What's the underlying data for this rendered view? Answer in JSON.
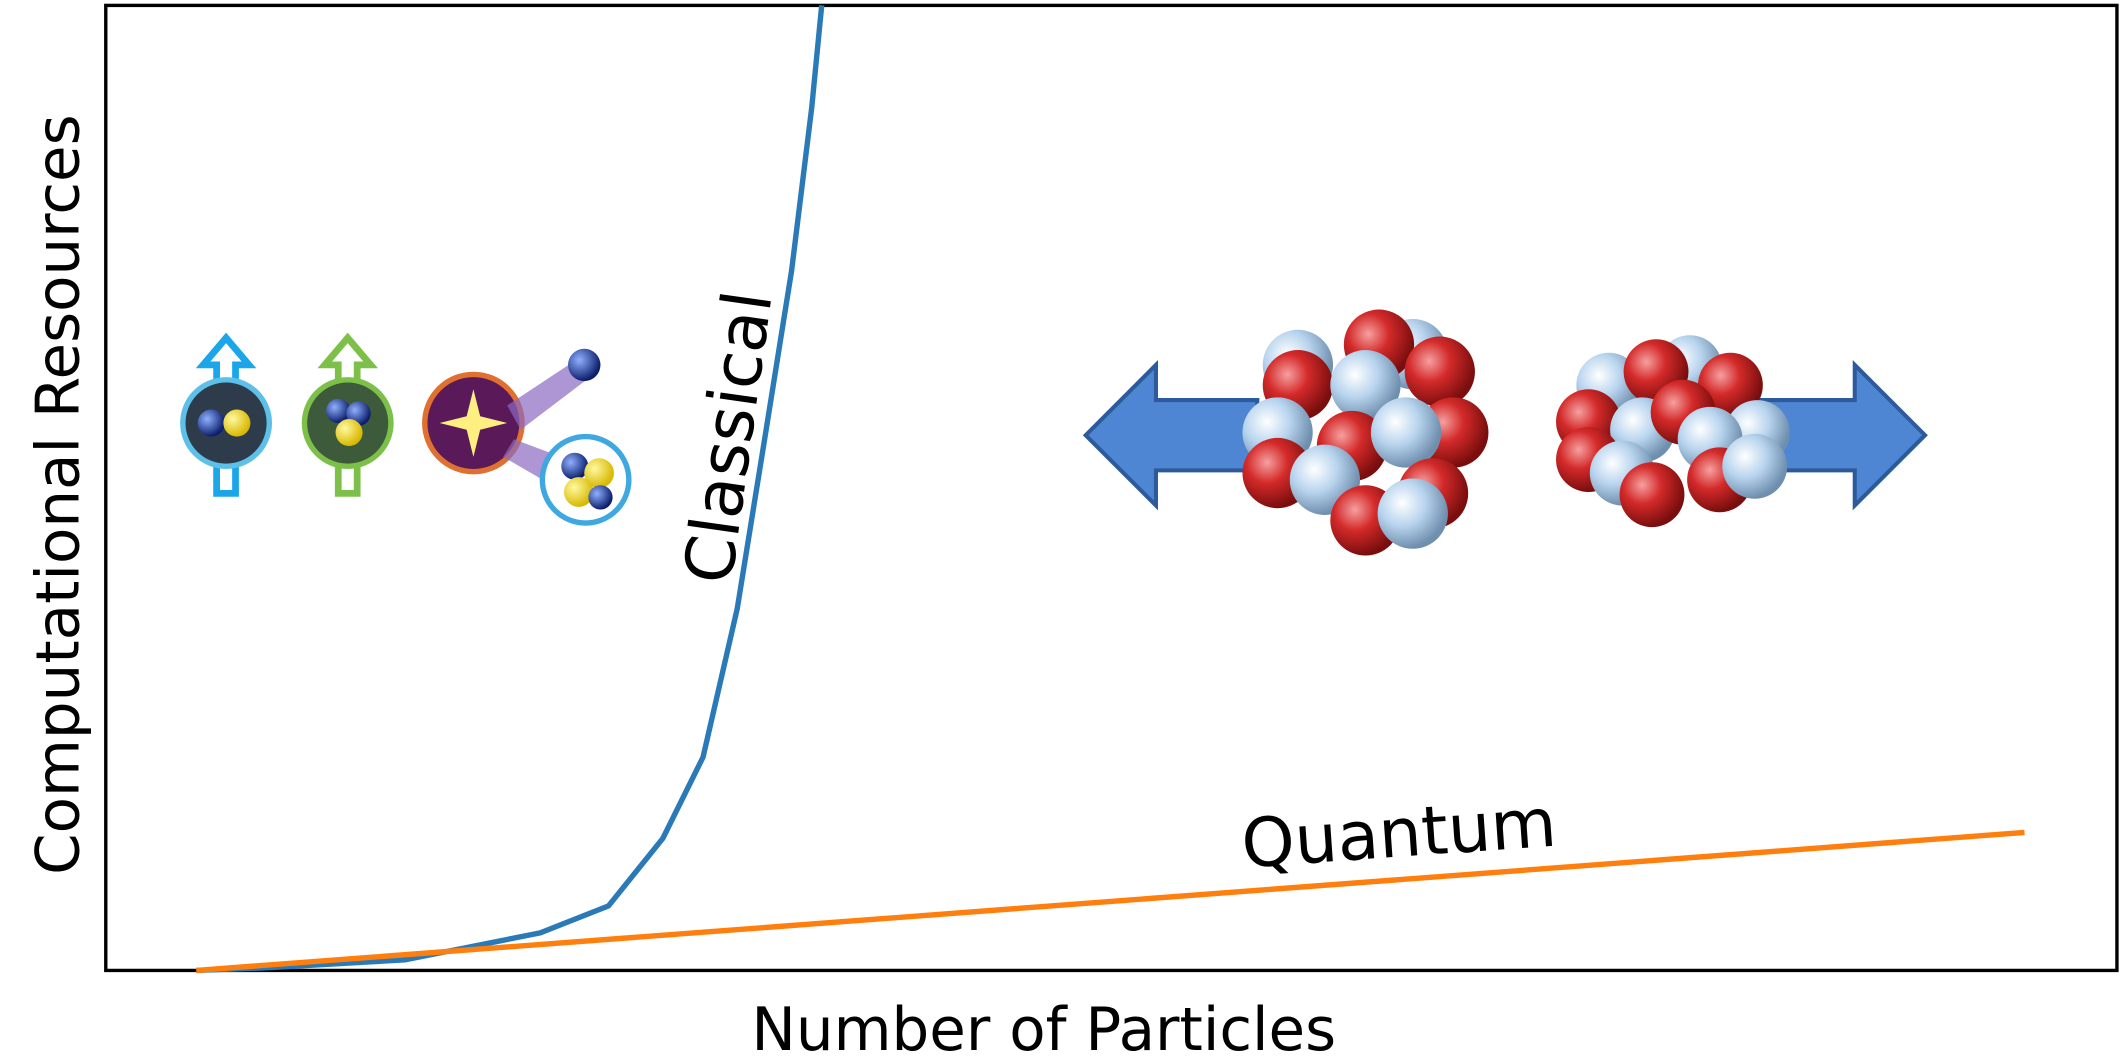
{
  "chart_data": {
    "type": "line",
    "x_label": "Number of Particles",
    "y_label": "Computational Resources",
    "xlim": [
      0,
      100
    ],
    "ylim": [
      0,
      100
    ],
    "series": [
      {
        "name": "Classical",
        "color": "#2a7ab8",
        "x": [
          4.5,
          8.2,
          14.9,
          21.6,
          25,
          27.7,
          29.7,
          31.4,
          32.7,
          34.1,
          35.1,
          35.6
        ],
        "values": [
          0,
          0.3,
          1.1,
          3.9,
          6.7,
          13.7,
          22.1,
          37.5,
          54.3,
          72.5,
          89.4,
          100
        ]
      },
      {
        "name": "Quantum",
        "color": "#ff7f0e",
        "x": [
          4.5,
          95.4
        ],
        "values": [
          0,
          14.3
        ]
      }
    ]
  }
}
